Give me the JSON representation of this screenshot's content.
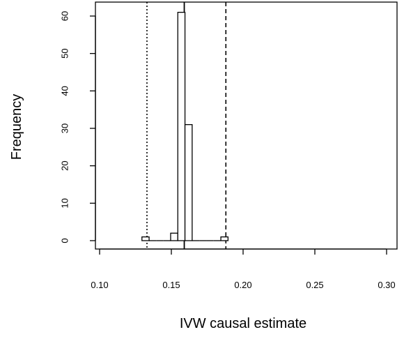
{
  "chart_data": {
    "type": "histogram",
    "xlabel": "IVW causal estimate",
    "ylabel": "Frequency",
    "xlim": [
      0.1,
      0.3
    ],
    "ylim": [
      0,
      60
    ],
    "x_ticks": [
      0.1,
      0.15,
      0.2,
      0.25,
      0.3
    ],
    "x_tick_labels": [
      "0.10",
      "0.15",
      "0.20",
      "0.25",
      "0.30"
    ],
    "y_ticks": [
      0,
      10,
      20,
      30,
      40,
      50,
      60
    ],
    "y_tick_labels": [
      "0",
      "10",
      "20",
      "30",
      "40",
      "50",
      "60"
    ],
    "bins": [
      {
        "x0": 0.1295,
        "x1": 0.1345,
        "count": 1
      },
      {
        "x0": 0.1345,
        "x1": 0.1395,
        "count": 0
      },
      {
        "x0": 0.1395,
        "x1": 0.1445,
        "count": 0
      },
      {
        "x0": 0.1445,
        "x1": 0.1495,
        "count": 0
      },
      {
        "x0": 0.1495,
        "x1": 0.1545,
        "count": 2
      },
      {
        "x0": 0.1545,
        "x1": 0.1595,
        "count": 61
      },
      {
        "x0": 0.1595,
        "x1": 0.1645,
        "count": 31
      },
      {
        "x0": 0.1645,
        "x1": 0.1695,
        "count": 0
      },
      {
        "x0": 0.1695,
        "x1": 0.1745,
        "count": 0
      },
      {
        "x0": 0.1745,
        "x1": 0.1795,
        "count": 0
      },
      {
        "x0": 0.1795,
        "x1": 0.1845,
        "count": 0
      },
      {
        "x0": 0.1845,
        "x1": 0.1895,
        "count": 1
      }
    ],
    "reference_lines": [
      {
        "x": 0.133,
        "style": "dotted"
      },
      {
        "x": 0.159,
        "style": "solid"
      },
      {
        "x": 0.188,
        "style": "dashed"
      }
    ],
    "box": true
  }
}
